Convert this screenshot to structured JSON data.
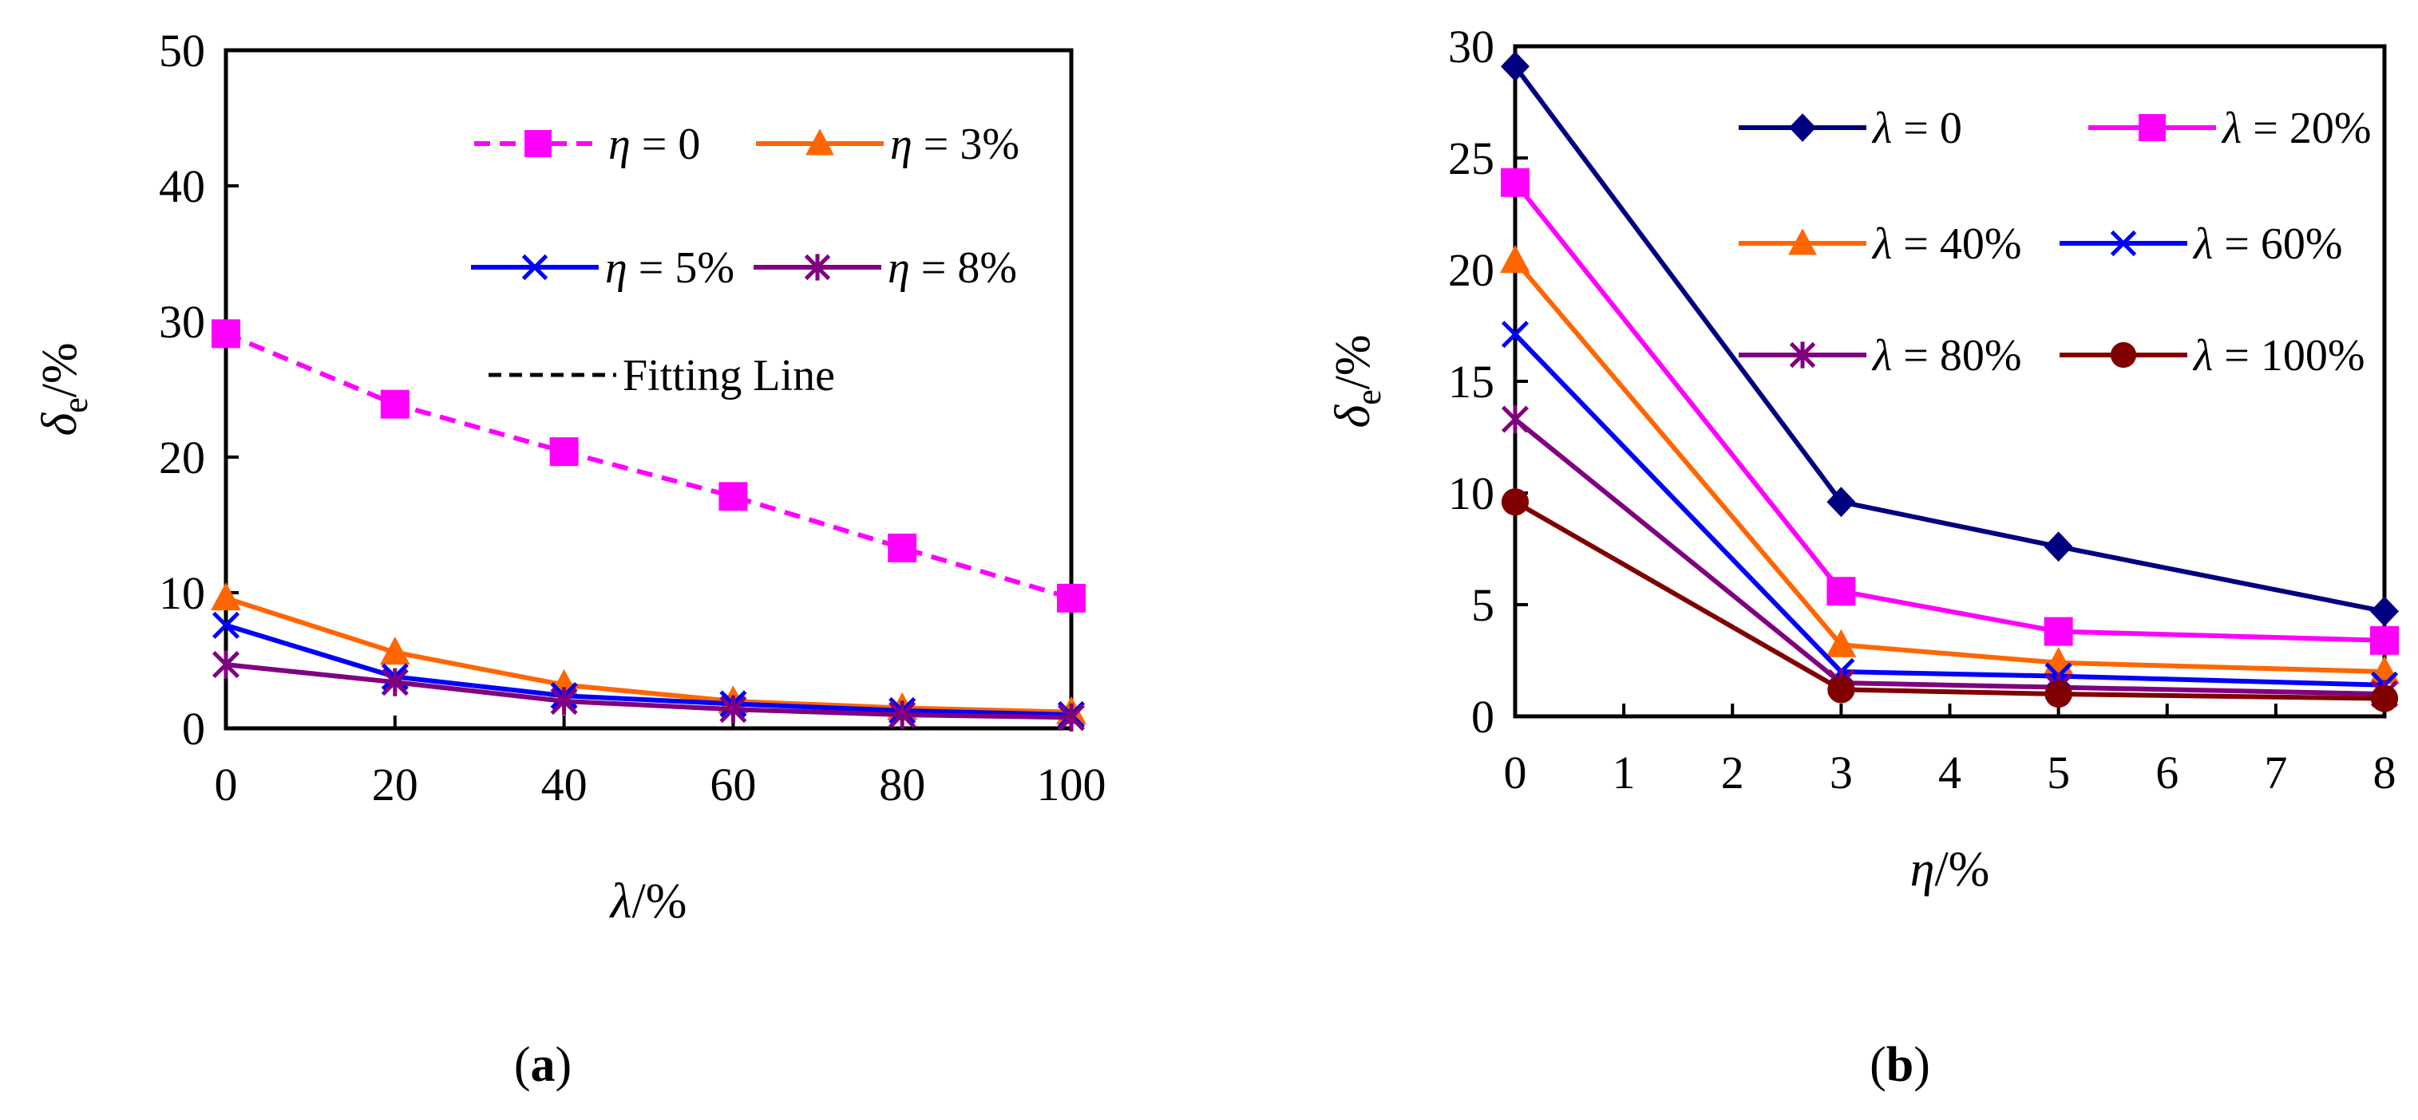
{
  "chart_data": [
    {
      "type": "line",
      "panel": "a",
      "caption": {
        "open": "(",
        "letter": "a",
        "close": ")"
      },
      "xlabel": {
        "var": "λ",
        "unit": "/%"
      },
      "ylabel": {
        "var": "δ",
        "sub": "e",
        "unit": "/%"
      },
      "x": [
        0,
        20,
        40,
        60,
        80,
        100
      ],
      "xticks": [
        0,
        20,
        40,
        60,
        80,
        100
      ],
      "xlim": [
        0,
        100
      ],
      "ylim": [
        0,
        50
      ],
      "yticks": [
        0,
        10,
        20,
        30,
        40,
        50
      ],
      "grid": false,
      "legend": {
        "placement": "top-right",
        "entries": [
          {
            "series": 0,
            "var": "η",
            "value": " = 0"
          },
          {
            "series": 1,
            "var": "η",
            "value": " = 3%"
          },
          {
            "series": 2,
            "var": "η",
            "value": " = 5%"
          },
          {
            "series": 3,
            "var": "η",
            "value": " = 8%"
          },
          {
            "series": "fit",
            "var": "",
            "value": "Fitting Line"
          }
        ]
      },
      "series": [
        {
          "name": "η = 0",
          "color": "#ff00ff",
          "marker": "square",
          "dashed": true,
          "values": [
            29.1,
            23.9,
            20.4,
            17.1,
            13.3,
            9.6
          ]
        },
        {
          "name": "η = 3%",
          "color": "#ff6600",
          "marker": "triangle",
          "dashed": false,
          "values": [
            9.6,
            5.6,
            3.2,
            2.0,
            1.5,
            1.2
          ]
        },
        {
          "name": "η = 5%",
          "color": "#0000ff",
          "marker": "x",
          "dashed": false,
          "values": [
            7.6,
            3.8,
            2.4,
            1.8,
            1.3,
            1.0
          ]
        },
        {
          "name": "η = 8%",
          "color": "#800080",
          "marker": "star",
          "dashed": false,
          "values": [
            4.7,
            3.4,
            2.0,
            1.4,
            1.0,
            0.8
          ]
        }
      ]
    },
    {
      "type": "line",
      "panel": "b",
      "caption": {
        "open": "(",
        "letter": "b",
        "close": ")"
      },
      "xlabel": {
        "var": "η",
        "unit": "/%"
      },
      "ylabel": {
        "var": "δ",
        "sub": "e",
        "unit": "/%"
      },
      "x": [
        0,
        3,
        5,
        8
      ],
      "xticks": [
        0,
        1,
        2,
        3,
        4,
        5,
        6,
        7,
        8
      ],
      "xlim": [
        0,
        8
      ],
      "ylim": [
        0,
        30
      ],
      "yticks": [
        0,
        5,
        10,
        15,
        20,
        25,
        30
      ],
      "grid": false,
      "legend": {
        "placement": "top-right",
        "entries": [
          {
            "series": 0,
            "var": "λ",
            "value": " = 0"
          },
          {
            "series": 1,
            "var": "λ",
            "value": " = 20%"
          },
          {
            "series": 2,
            "var": "λ",
            "value": " = 40%"
          },
          {
            "series": 3,
            "var": "λ",
            "value": " = 60%"
          },
          {
            "series": 4,
            "var": "λ",
            "value": " = 80%"
          },
          {
            "series": 5,
            "var": "λ",
            "value": " = 100%"
          }
        ]
      },
      "series": [
        {
          "name": "λ = 0",
          "color": "#000080",
          "marker": "diamond",
          "values": [
            29.1,
            9.6,
            7.6,
            4.7
          ]
        },
        {
          "name": "λ = 20%",
          "color": "#ff00ff",
          "marker": "square",
          "values": [
            23.9,
            5.6,
            3.8,
            3.4
          ]
        },
        {
          "name": "λ = 40%",
          "color": "#ff6600",
          "marker": "triangle",
          "values": [
            20.4,
            3.2,
            2.4,
            2.0
          ]
        },
        {
          "name": "λ = 60%",
          "color": "#0000ff",
          "marker": "x",
          "values": [
            17.1,
            2.0,
            1.8,
            1.4
          ]
        },
        {
          "name": "λ = 80%",
          "color": "#800080",
          "marker": "star",
          "values": [
            13.3,
            1.5,
            1.3,
            1.0
          ]
        },
        {
          "name": "λ = 100%",
          "color": "#800000",
          "marker": "circle",
          "values": [
            9.6,
            1.2,
            1.0,
            0.8
          ]
        }
      ]
    }
  ]
}
